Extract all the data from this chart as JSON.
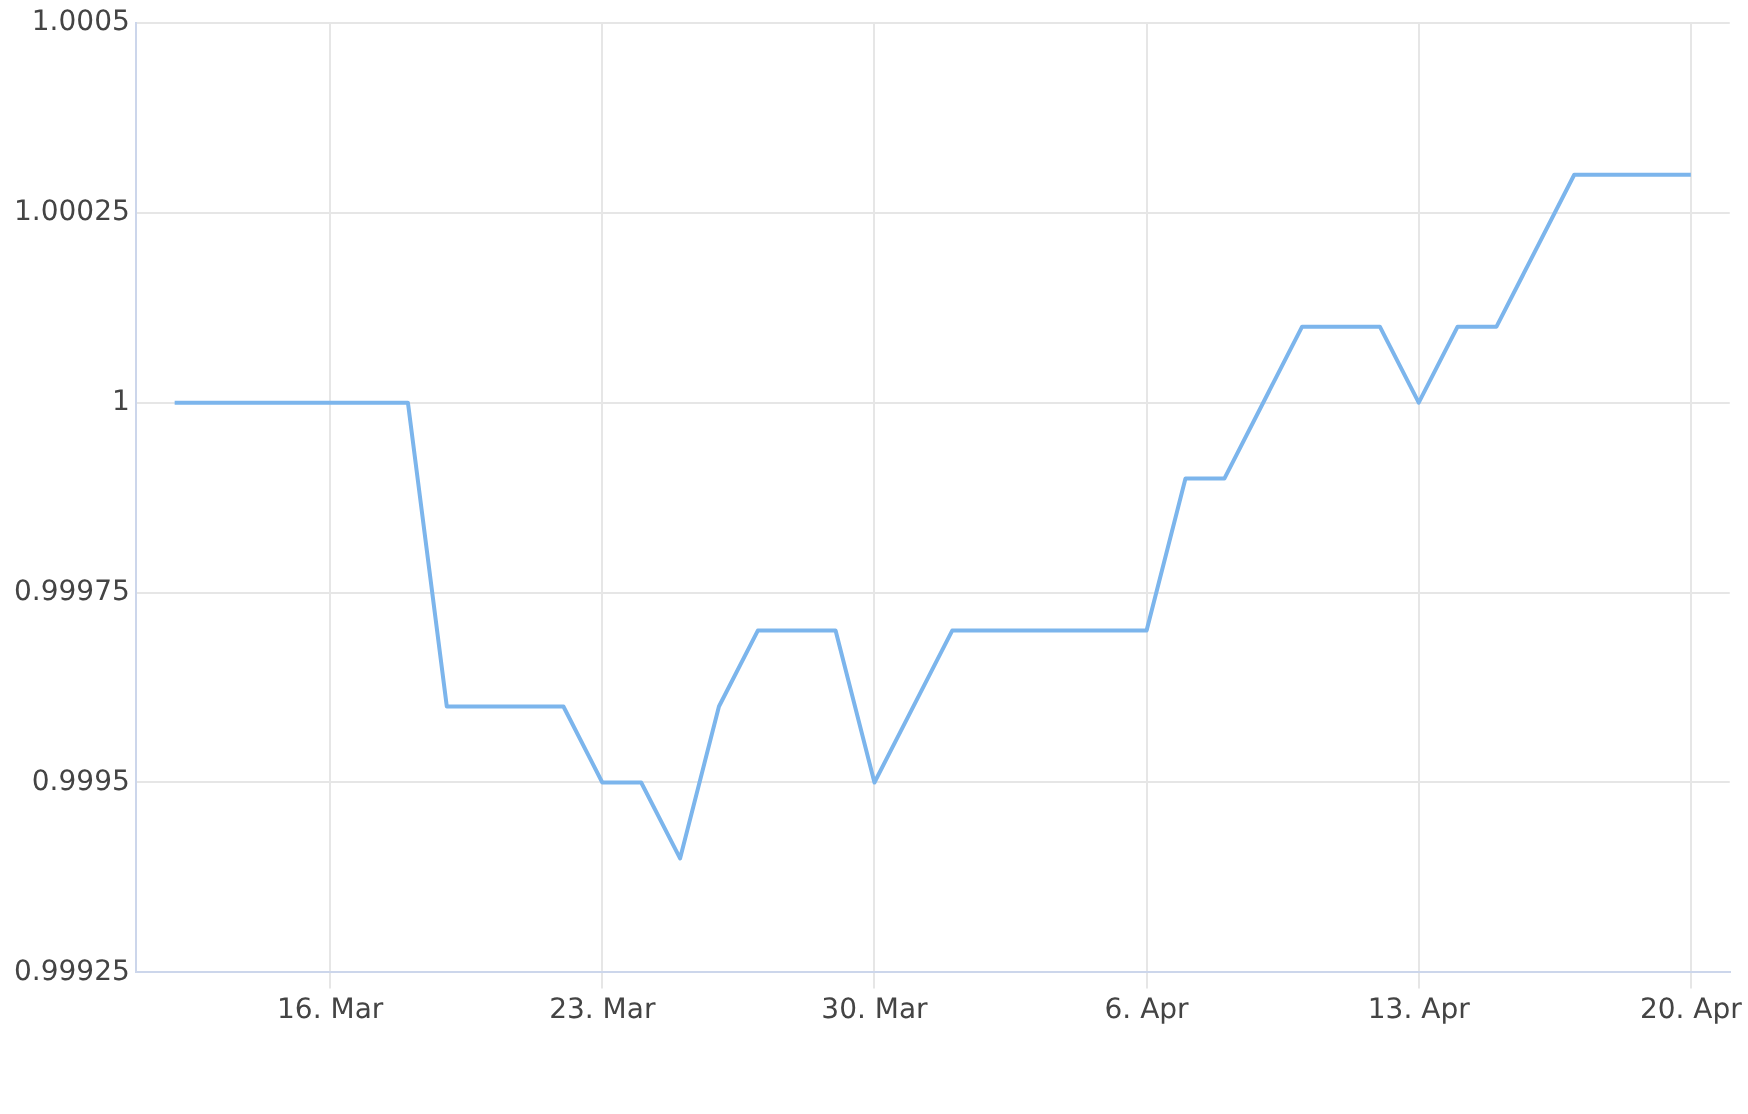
{
  "chart_data": {
    "type": "line",
    "x": [
      "--03-12",
      "--03-18",
      "--03-19",
      "--03-22",
      "--03-23",
      "--03-24",
      "--03-25",
      "--03-26",
      "--03-27",
      "--03-29",
      "--03-30",
      "--04-01",
      "--04-06",
      "--04-07",
      "--04-08",
      "--04-10",
      "--04-12",
      "--04-13",
      "--04-14",
      "--04-15",
      "--04-17",
      "--04-20"
    ],
    "series": [
      {
        "color": "#7cb5ec",
        "values": [
          1,
          1,
          0.9996,
          0.9996,
          0.9995,
          0.9995,
          0.9994,
          0.9996,
          0.9997,
          0.9997,
          0.9995,
          0.9997,
          0.9997,
          0.9999,
          0.9999,
          1.0001,
          1.0001,
          1,
          1.0001,
          1.0001,
          1.0003,
          1.0003
        ]
      }
    ],
    "xlim": [
      "--03-11",
      "--04-21"
    ],
    "xticks": [
      {
        "value": "--03-16",
        "label": "16. Mar"
      },
      {
        "value": "--03-23",
        "label": "23. Mar"
      },
      {
        "value": "--03-30",
        "label": "30. Mar"
      },
      {
        "value": "--04-06",
        "label": "6. Apr"
      },
      {
        "value": "--04-13",
        "label": "13. Apr"
      },
      {
        "value": "--04-20",
        "label": "20. Apr"
      }
    ],
    "ylim": [
      0.99925,
      1.0005
    ],
    "yticks": [
      0.99925,
      0.9995,
      0.99975,
      1,
      1.00025,
      1.0005
    ],
    "grid": true,
    "marker": "none",
    "line_style": "solid",
    "legend": false
  }
}
